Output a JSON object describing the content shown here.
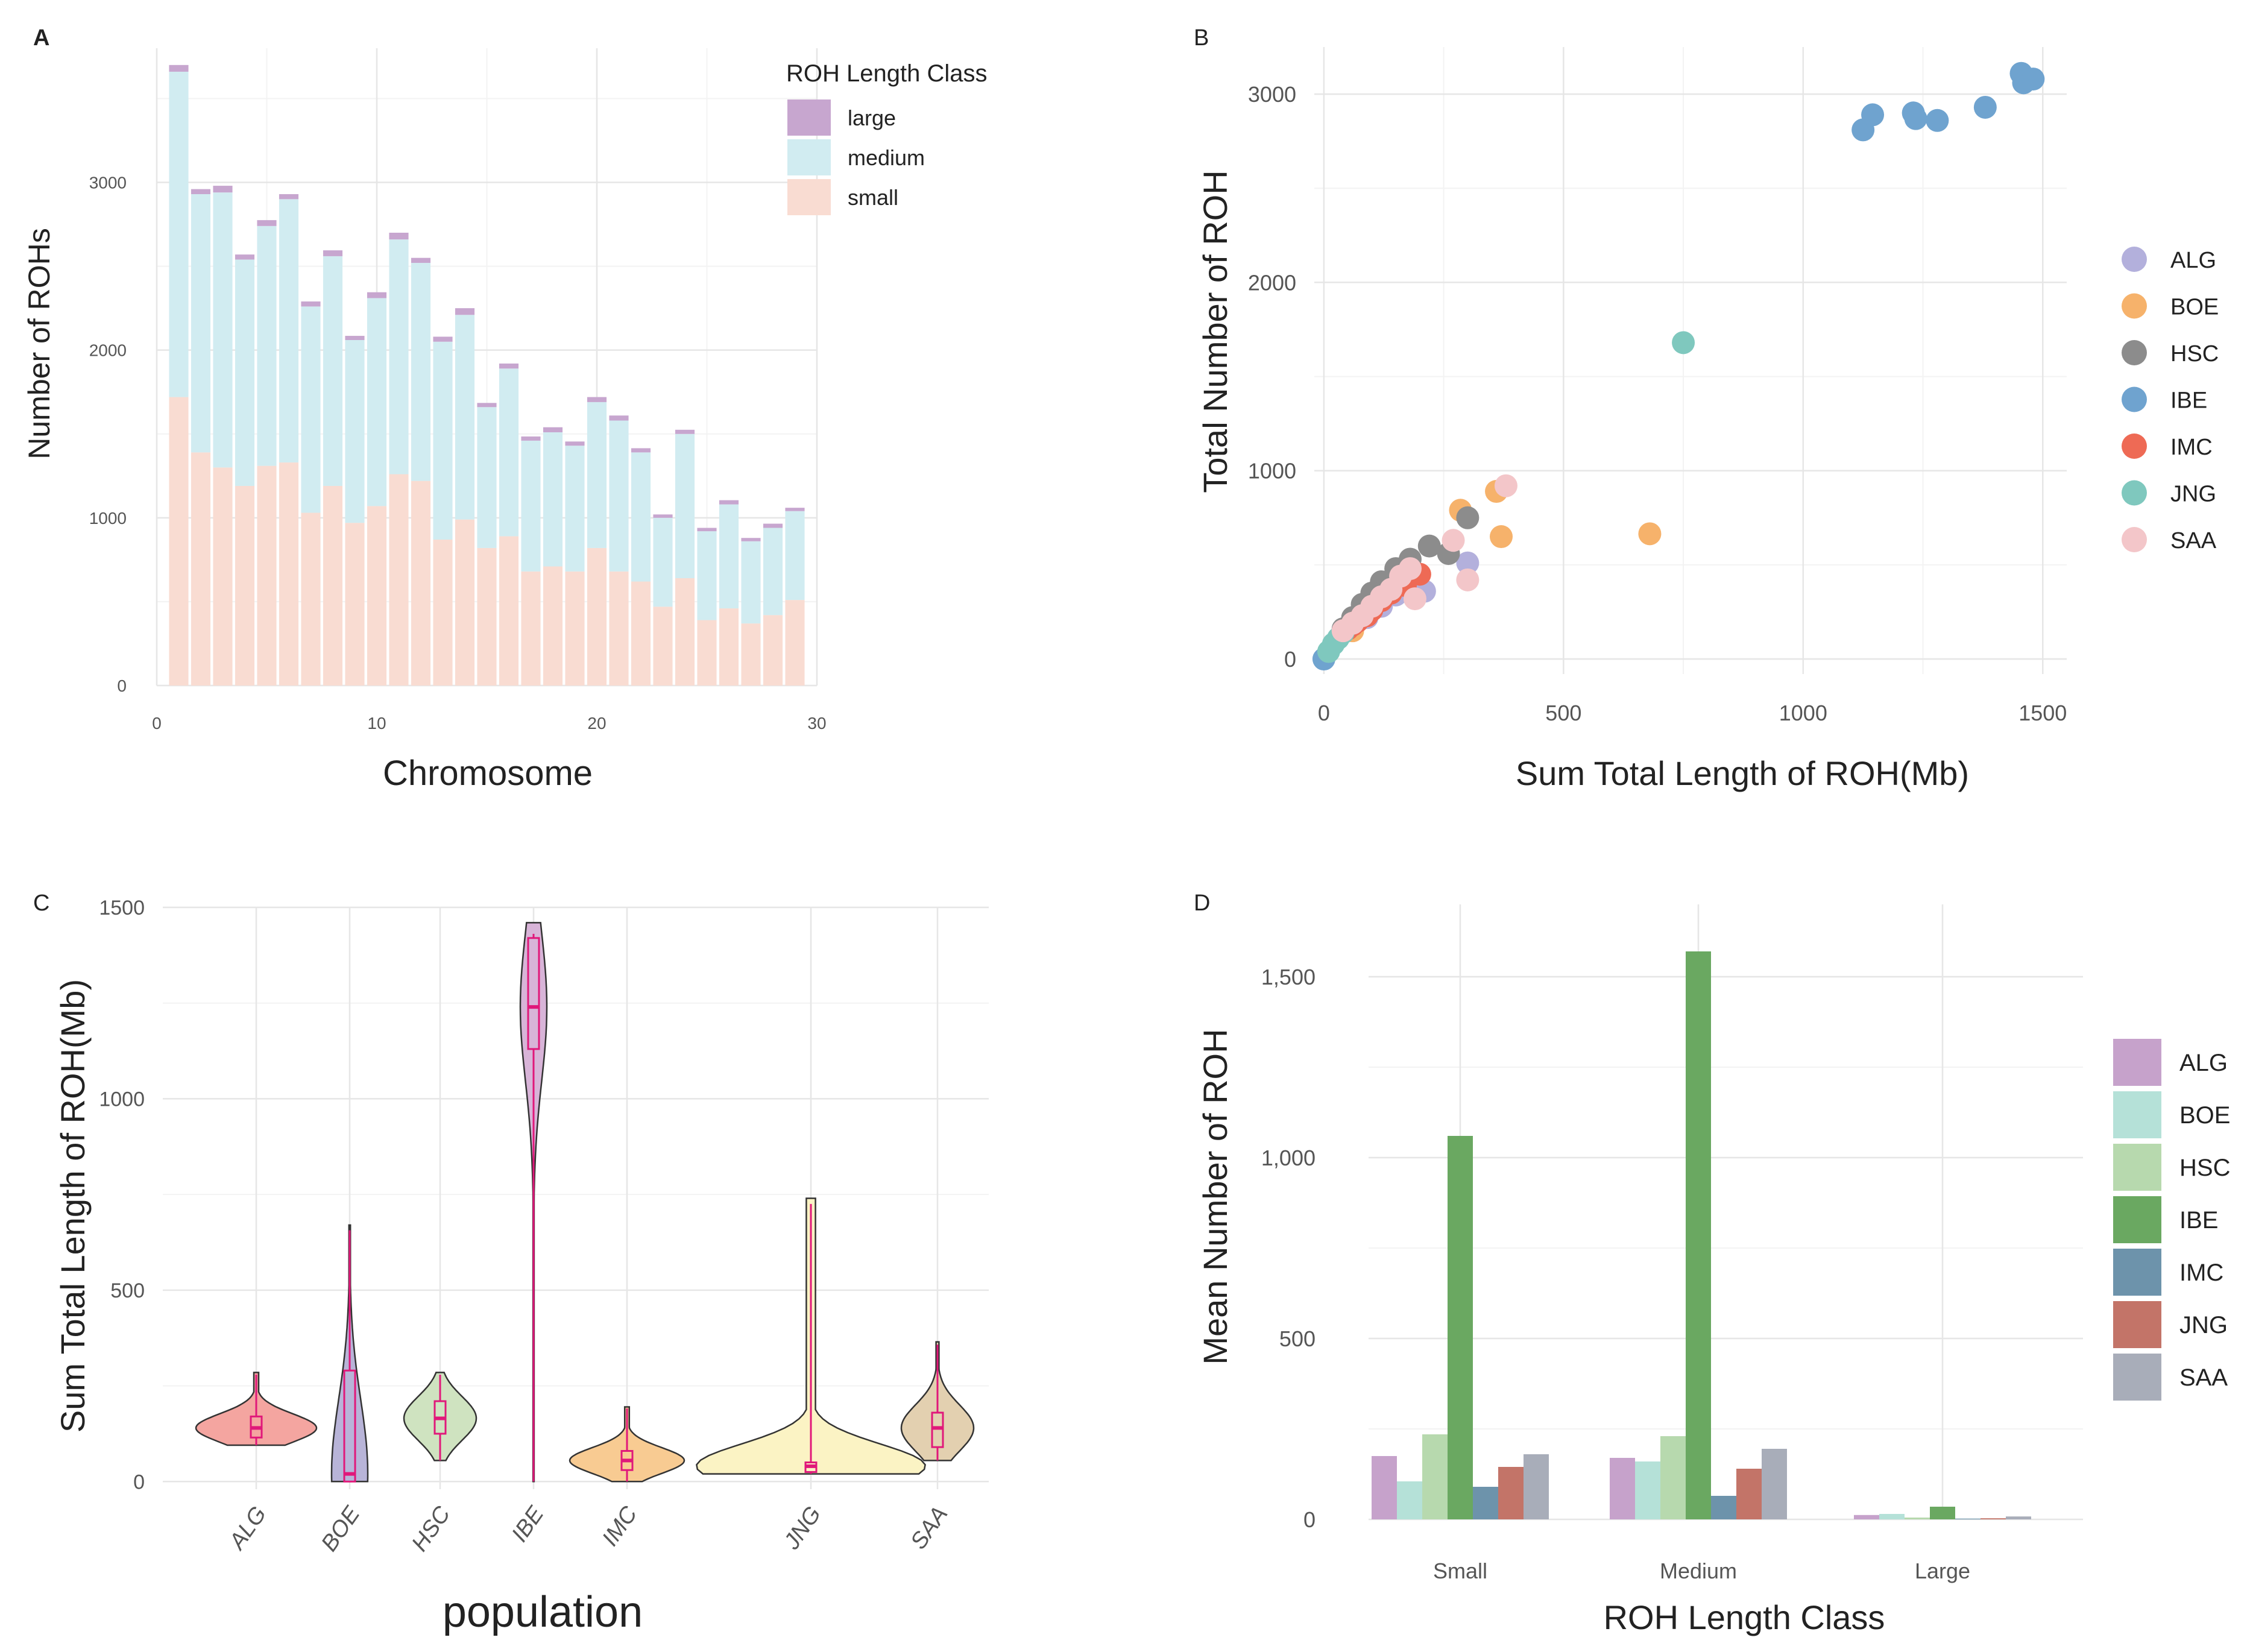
{
  "figure": {
    "colors": {
      "bg": "#ffffff",
      "grid_major": "#e6e6e6",
      "grid_minor": "#f3f3f3",
      "text": "#222222",
      "axis_text": "#555555",
      "box_stroke": "#e0187a"
    }
  },
  "chart_data": [
    {
      "panel": "A",
      "type": "bar",
      "stacked": true,
      "title": "",
      "xlabel": "Chromosome",
      "ylabel": "Number of ROHs",
      "xlim": [
        0,
        30
      ],
      "ylim": [
        0,
        3800
      ],
      "xticks": [
        0,
        10,
        20,
        30
      ],
      "yticks": [
        0,
        1000,
        2000,
        3000
      ],
      "legend_title": "ROH Length Class",
      "legend_position": "top-right",
      "categories": [
        1,
        2,
        3,
        4,
        5,
        6,
        7,
        8,
        9,
        10,
        11,
        12,
        13,
        14,
        15,
        16,
        17,
        18,
        19,
        20,
        21,
        22,
        23,
        24,
        25,
        26,
        27,
        28,
        29
      ],
      "series": [
        {
          "name": "small",
          "color": "#f9dcd2",
          "values": [
            1720,
            1390,
            1300,
            1190,
            1310,
            1330,
            1030,
            1190,
            970,
            1070,
            1260,
            1220,
            870,
            990,
            820,
            890,
            680,
            710,
            680,
            820,
            680,
            620,
            470,
            640,
            390,
            460,
            370,
            420,
            510
          ]
        },
        {
          "name": "medium",
          "color": "#d1ecf1",
          "values": [
            1940,
            1540,
            1640,
            1350,
            1430,
            1570,
            1230,
            1370,
            1090,
            1240,
            1400,
            1300,
            1180,
            1220,
            840,
            1000,
            780,
            800,
            750,
            870,
            900,
            770,
            530,
            860,
            530,
            620,
            490,
            520,
            530
          ]
        },
        {
          "name": "large",
          "color": "#c7a6cf",
          "values": [
            40,
            30,
            40,
            30,
            35,
            30,
            30,
            35,
            25,
            35,
            40,
            30,
            30,
            40,
            25,
            30,
            25,
            30,
            25,
            30,
            30,
            25,
            20,
            25,
            20,
            25,
            20,
            25,
            20
          ]
        }
      ],
      "legend_order": [
        "large",
        "medium",
        "small"
      ]
    },
    {
      "panel": "B",
      "type": "scatter",
      "title": "",
      "xlabel": "Sum Total Length of ROH(Mb)",
      "ylabel": "Total Number of ROH",
      "xlim": [
        -20,
        1550
      ],
      "ylim": [
        -80,
        3250
      ],
      "xticks": [
        0,
        500,
        1000,
        1500
      ],
      "yticks": [
        0,
        1000,
        2000,
        3000
      ],
      "legend_position": "right",
      "series": [
        {
          "name": "ALG",
          "color": "#b3b0dc",
          "x": [
            210,
            300,
            150,
            120,
            90,
            60
          ],
          "y": [
            360,
            510,
            340,
            280,
            220,
            160
          ]
        },
        {
          "name": "BOE",
          "color": "#f6b26b",
          "x": [
            285,
            360,
            370,
            680,
            60
          ],
          "y": [
            790,
            890,
            650,
            665,
            150
          ]
        },
        {
          "name": "HSC",
          "color": "#8c8c8c",
          "x": [
            300,
            260,
            220,
            180,
            150,
            120,
            100,
            80,
            60,
            40
          ],
          "y": [
            750,
            560,
            600,
            530,
            480,
            410,
            350,
            290,
            220,
            160
          ]
        },
        {
          "name": "IBE",
          "color": "#6fa3cf",
          "x": [
            0,
            1125,
            1145,
            1230,
            1235,
            1280,
            1380,
            1455,
            1460,
            1480
          ],
          "y": [
            0,
            2810,
            2890,
            2900,
            2870,
            2860,
            2930,
            3110,
            3060,
            3080
          ]
        },
        {
          "name": "IMC",
          "color": "#ee6a55",
          "x": [
            200,
            170,
            140,
            120,
            100,
            90,
            70,
            60,
            50,
            40
          ],
          "y": [
            450,
            390,
            350,
            310,
            260,
            230,
            200,
            180,
            160,
            140
          ]
        },
        {
          "name": "JNG",
          "color": "#7fc8be",
          "x": [
            750,
            40,
            30,
            20,
            10
          ],
          "y": [
            1680,
            140,
            110,
            80,
            40
          ]
        },
        {
          "name": "SAA",
          "color": "#f3c6c9",
          "x": [
            380,
            270,
            300,
            180,
            160,
            190,
            140,
            120,
            100,
            80,
            60,
            40
          ],
          "y": [
            920,
            630,
            420,
            480,
            440,
            320,
            370,
            330,
            280,
            230,
            190,
            150
          ]
        }
      ]
    },
    {
      "panel": "C",
      "type": "violin",
      "title": "",
      "xlabel": "population",
      "ylabel": "Sum Total Length of ROH(Mb)",
      "ylim": [
        -20,
        1500
      ],
      "yticks": [
        0,
        500,
        1000,
        1500
      ],
      "categories": [
        "ALG",
        "BOE",
        "HSC",
        "IBE",
        "IMC",
        "JNG",
        "SAA"
      ],
      "series": [
        {
          "name": "ALG",
          "color": "#f4a5a0",
          "min": 95,
          "q1": 115,
          "median": 140,
          "q3": 170,
          "max": 285
        },
        {
          "name": "BOE",
          "color": "#b8b4d8",
          "min": 0,
          "q1": 0,
          "median": 20,
          "q3": 290,
          "max": 670
        },
        {
          "name": "HSC",
          "color": "#cfe3c0",
          "min": 55,
          "q1": 125,
          "median": 165,
          "q3": 210,
          "max": 285
        },
        {
          "name": "IBE",
          "color": "#d8b4d8",
          "min": 0,
          "q1": 1130,
          "median": 1240,
          "q3": 1420,
          "max": 1460
        },
        {
          "name": "IMC",
          "color": "#f8cb92",
          "min": 0,
          "q1": 30,
          "median": 55,
          "q3": 80,
          "max": 195
        },
        {
          "name": "JNG",
          "color": "#fbf3c4",
          "min": 20,
          "q1": 25,
          "median": 40,
          "q3": 50,
          "max": 740
        },
        {
          "name": "SAA",
          "color": "#e3d0b0",
          "min": 55,
          "q1": 90,
          "median": 140,
          "q3": 180,
          "max": 365
        }
      ]
    },
    {
      "panel": "D",
      "type": "bar",
      "grouped": true,
      "title": "",
      "xlabel": "ROH Length Class",
      "ylabel": "Mean Number of ROH",
      "ylim": [
        0,
        1700
      ],
      "ytick_labels": [
        "0",
        "500",
        "1,000",
        "1,500"
      ],
      "yticks": [
        0,
        500,
        1000,
        1500
      ],
      "legend_position": "right",
      "categories": [
        "Small",
        "Medium",
        "Large"
      ],
      "series": [
        {
          "name": "ALG",
          "color": "#c6a2cb",
          "values": [
            175,
            170,
            12
          ]
        },
        {
          "name": "BOE",
          "color": "#b5e1d8",
          "values": [
            105,
            160,
            15
          ]
        },
        {
          "name": "HSC",
          "color": "#b7d9ae",
          "values": [
            235,
            230,
            5
          ]
        },
        {
          "name": "IBE",
          "color": "#6aa861",
          "values": [
            1060,
            1570,
            35
          ]
        },
        {
          "name": "IMC",
          "color": "#6d93ab",
          "values": [
            90,
            65,
            2
          ]
        },
        {
          "name": "JNG",
          "color": "#c37468",
          "values": [
            145,
            140,
            3
          ]
        },
        {
          "name": "SAA",
          "color": "#a8adb9",
          "values": [
            180,
            195,
            8
          ]
        }
      ]
    }
  ]
}
